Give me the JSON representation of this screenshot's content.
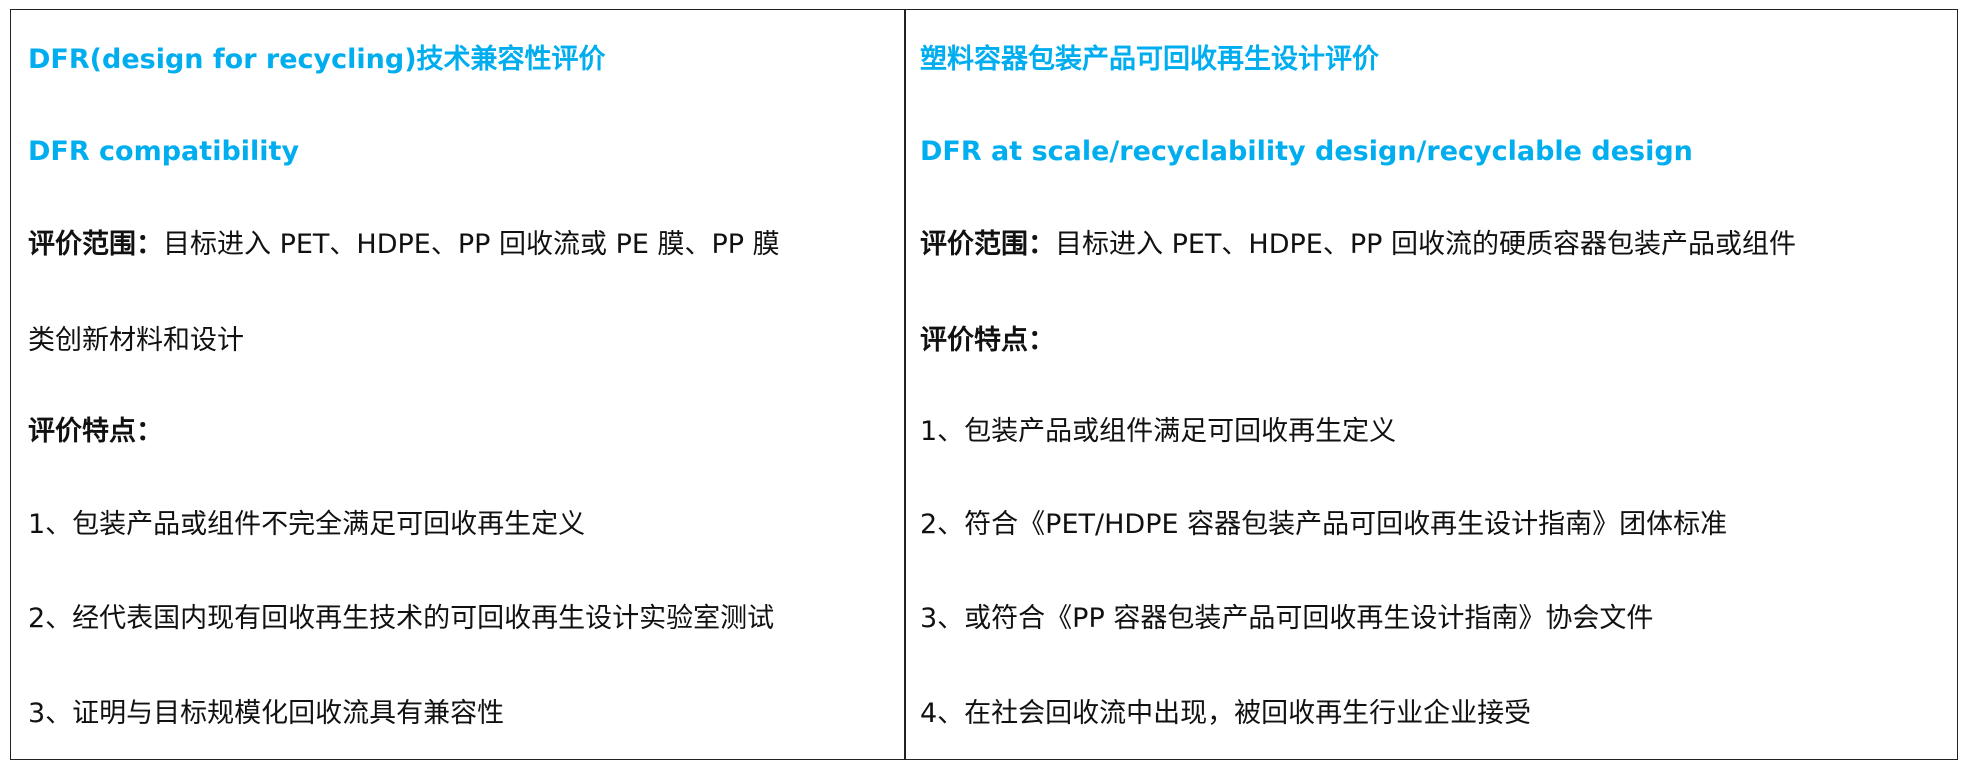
{
  "left": {
    "title": "DFR(design for recycling)技术兼容性评价",
    "subtitle": "DFR compatibility",
    "scope_label": "评价范围：",
    "scope_text_1": "目标进入 PET、HDPE、PP 回收流或 PE 膜、PP 膜",
    "scope_text_2": "类创新材料和设计",
    "features_label": "评价特点：",
    "features": [
      "1、包装产品或组件不完全满足可回收再生定义",
      "2、经代表国内现有回收再生技术的可回收再生设计实验室测试",
      "3、证明与目标规模化回收流具有兼容性"
    ]
  },
  "right": {
    "title": "塑料容器包装产品可回收再生设计评价",
    "subtitle": "DFR at scale/recyclability design/recyclable design",
    "scope_label": "评价范围：",
    "scope_text": "目标进入 PET、HDPE、PP 回收流的硬质容器包装产品或组件",
    "features_label": "评价特点：",
    "features": [
      "1、包装产品或组件满足可回收再生定义",
      "2、符合《PET/HDPE 容器包装产品可回收再生设计指南》团体标准",
      "3、或符合《PP 容器包装产品可回收再生设计指南》协会文件",
      "4、在社会回收流中出现，被回收再生行业企业接受"
    ]
  },
  "colors": {
    "accent": "#00AEEF",
    "text": "#111111",
    "border": "#222222"
  }
}
